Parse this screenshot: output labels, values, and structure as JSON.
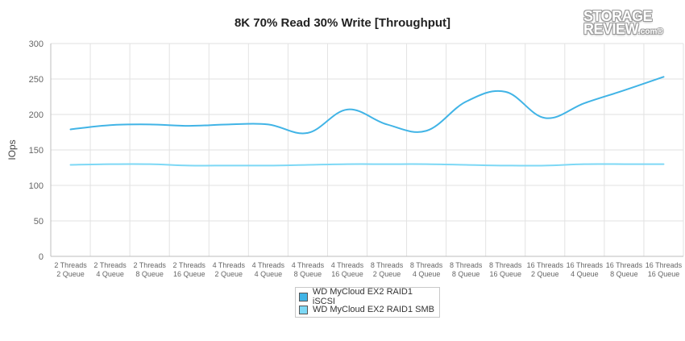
{
  "chart_data": {
    "type": "line",
    "title": "8K 70% Read 30% Write [Throughput]",
    "ylabel": "IOps",
    "xlabel": "",
    "ylim": [
      0,
      300
    ],
    "yticks": [
      0,
      50,
      100,
      150,
      200,
      250,
      300
    ],
    "grid": true,
    "legend_position": "bottom",
    "categories": [
      [
        "2 Threads",
        "2 Queue"
      ],
      [
        "2 Threads",
        "4 Queue"
      ],
      [
        "2 Threads",
        "8 Queue"
      ],
      [
        "2 Threads",
        "16 Queue"
      ],
      [
        "4 Threads",
        "2 Queue"
      ],
      [
        "4 Threads",
        "4 Queue"
      ],
      [
        "4 Threads",
        "8 Queue"
      ],
      [
        "4 Threads",
        "16 Queue"
      ],
      [
        "8 Threads",
        "2 Queue"
      ],
      [
        "8 Threads",
        "4 Queue"
      ],
      [
        "8 Threads",
        "8 Queue"
      ],
      [
        "8 Threads",
        "16 Queue"
      ],
      [
        "16 Threads",
        "2 Queue"
      ],
      [
        "16 Threads",
        "4 Queue"
      ],
      [
        "16 Threads",
        "8 Queue"
      ],
      [
        "16 Threads",
        "16 Queue"
      ]
    ],
    "series": [
      {
        "name": "WD MyCloud EX2 RAID1 iSCSI",
        "color": "#41b4e6",
        "values": [
          179,
          185,
          186,
          184,
          186,
          186,
          174,
          207,
          186,
          177,
          218,
          232,
          195,
          216,
          234,
          253
        ]
      },
      {
        "name": "WD MyCloud EX2 RAID1 SMB",
        "color": "#7dd8f5",
        "values": [
          129,
          130,
          130,
          128,
          128,
          128,
          129,
          130,
          130,
          130,
          129,
          128,
          128,
          130,
          130,
          130
        ]
      }
    ]
  },
  "logo": {
    "line1": "STORAGE",
    "line2": "REVIEW",
    "suffix": ".com®"
  }
}
